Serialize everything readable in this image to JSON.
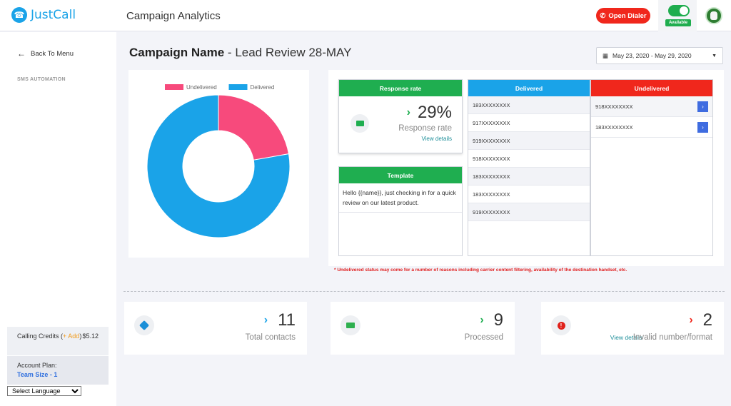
{
  "app": {
    "logo_text": "JustCall",
    "page_title": "Campaign Analytics"
  },
  "header": {
    "open_dialer": "Open Dialer",
    "status": "Available"
  },
  "sidebar": {
    "back_label": "Back To Menu",
    "section": "SMS AUTOMATION",
    "credits_label": "Calling Credits (",
    "credits_add": "+ Add",
    "credits_close": ")",
    "credits_value": "$5.12",
    "plan_label": "Account Plan:",
    "plan_value": "Team Size - 1",
    "language": "Select Language"
  },
  "campaign": {
    "label": "Campaign Name",
    "separator": " - ",
    "name": "Lead Review 28-MAY",
    "date_range": "May 23, 2020 - May 29, 2020"
  },
  "chart_data": {
    "type": "pie",
    "donut": true,
    "categories": [
      "Undelivered",
      "Delivered"
    ],
    "values": [
      2,
      7
    ],
    "colors": [
      "#f74a7c",
      "#1aa3e8"
    ],
    "legend": "top"
  },
  "response": {
    "header": "Response rate",
    "value": "29%",
    "label": "Response rate",
    "view_details": "View details"
  },
  "template": {
    "header": "Template",
    "text": "Hello {{name}}, just checking in for a quick review on our latest product."
  },
  "delivered": {
    "header": "Delivered",
    "numbers": [
      "183XXXXXXXX",
      "917XXXXXXXX",
      "919XXXXXXXX",
      "918XXXXXXXX",
      "183XXXXXXXX",
      "183XXXXXXXX",
      "919XXXXXXXX"
    ]
  },
  "undelivered": {
    "header": "Undelivered",
    "numbers": [
      "918XXXXXXXX",
      "183XXXXXXXX"
    ]
  },
  "note": "* Undelivered status may come for a number of reasons including carrier content filtering, availability of the destination handset, etc.",
  "stats": {
    "total": {
      "value": "11",
      "label": "Total contacts"
    },
    "processed": {
      "value": "9",
      "label": "Processed"
    },
    "invalid": {
      "value": "2",
      "label": "Invalid number/format",
      "link": "View details"
    }
  }
}
